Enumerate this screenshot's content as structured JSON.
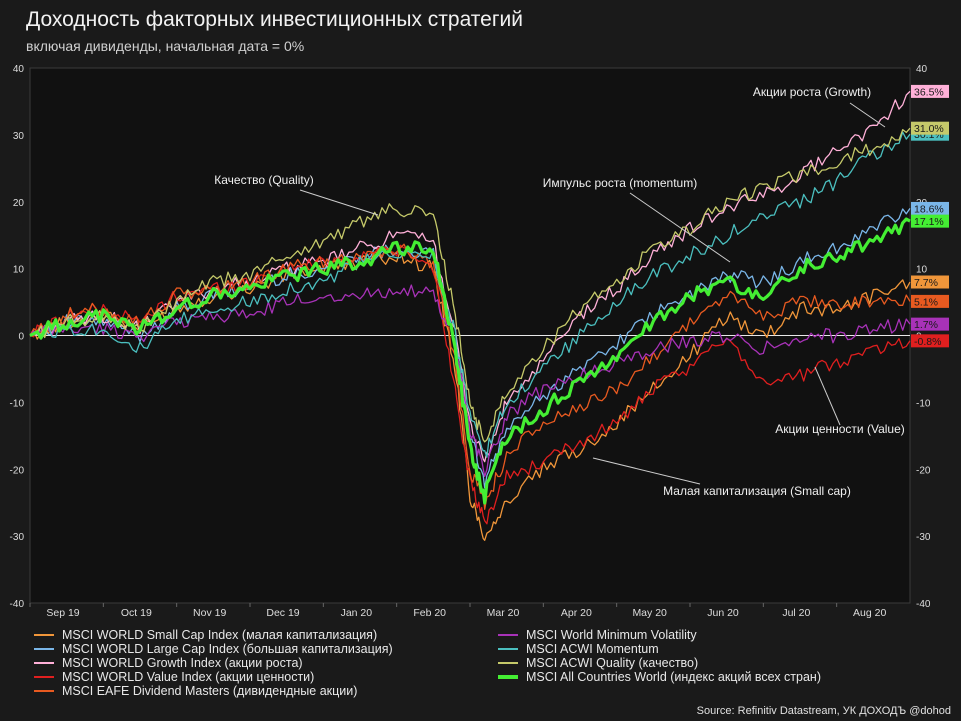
{
  "header": {
    "title": "Доходность факторных инвестиционных стратегий",
    "subtitle": "включая дивиденды, начальная дата = 0%"
  },
  "source": "Source: Refinitiv Datastream, УК ДОХОДЪ @dohod",
  "chart_data": {
    "type": "line",
    "title": "Доходность факторных инвестиционных стратегий",
    "subtitle": "включая дивиденды, начальная дата = 0%",
    "ylim": [
      -40,
      40
    ],
    "y_ticks": [
      -40,
      -30,
      -20,
      -10,
      0,
      10,
      20,
      30,
      40
    ],
    "right_y_ticks": [
      -40,
      -30,
      -20,
      -10,
      0,
      10,
      20,
      30,
      40
    ],
    "x_tick_labels": [
      "Sep 19",
      "Oct 19",
      "Nov 19",
      "Dec 19",
      "Jan 20",
      "Feb 20",
      "Mar 20",
      "Apr 20",
      "May 20",
      "Jun 20",
      "Jul 20",
      "Aug 20"
    ],
    "x": [
      0,
      0.5,
      1,
      1.5,
      2,
      2.5,
      3,
      3.5,
      4,
      4.5,
      5,
      5.5,
      5.8,
      6,
      6.2,
      6.5,
      7,
      7.5,
      8,
      8.5,
      9,
      9.5,
      10,
      10.5,
      11,
      11.5,
      12
    ],
    "grid": false,
    "zero_line": true,
    "series": [
      {
        "name": "MSCI WORLD Small Cap Index (малая капитализация)",
        "color": "#f0963a",
        "width": 1.3,
        "end_label": "7.7%",
        "values": [
          0,
          2,
          3,
          1,
          4,
          6,
          7,
          9,
          10,
          11,
          12,
          10,
          -5,
          -24,
          -30,
          -25,
          -20,
          -17,
          -13,
          -8,
          -3,
          3,
          0,
          4,
          4,
          6,
          8
        ]
      },
      {
        "name": "MSCI WORLD Large Cap Index (большая капитализация)",
        "color": "#7ab6e8",
        "width": 1.3,
        "end_label": "18.6%",
        "values": [
          0,
          2,
          2,
          0,
          4,
          6,
          7,
          9,
          10,
          12,
          13,
          12,
          -2,
          -15,
          -22,
          -14,
          -9,
          -5,
          -1,
          3,
          6,
          9,
          8,
          11,
          13,
          16,
          19
        ]
      },
      {
        "name": "MSCI WORLD Growth Index (акции роста)",
        "color": "#ffb0d8",
        "width": 1.3,
        "end_label": "36.5%",
        "values": [
          0,
          2,
          3,
          1,
          5,
          7,
          8,
          10,
          11,
          13,
          15,
          14,
          0,
          -13,
          -19,
          -10,
          -4,
          3,
          7,
          12,
          16,
          19,
          21,
          24,
          28,
          31,
          36.5
        ]
      },
      {
        "name": "MSCI WORLD Value Index (акции ценности)",
        "color": "#e01f1f",
        "width": 1.3,
        "end_label": "-0.8%",
        "values": [
          0,
          3,
          4,
          2,
          6,
          7,
          8,
          10,
          11,
          12,
          13,
          10,
          -8,
          -22,
          -28,
          -21,
          -19,
          -16,
          -13,
          -8,
          -5,
          0,
          -7,
          -6,
          -4,
          -2,
          -0.8
        ]
      },
      {
        "name": "MSCI EAFE Dividend Masters (дивидендные акции)",
        "color": "#e85a20",
        "width": 1.3,
        "end_label": "5.1%",
        "values": [
          0,
          3,
          4,
          2,
          6,
          7,
          8,
          10,
          11,
          12,
          13,
          11,
          -4,
          -20,
          -25,
          -18,
          -13,
          -11,
          -8,
          -3,
          2,
          6,
          3,
          5,
          5,
          5,
          5.1
        ]
      },
      {
        "name": "MSCI World Minimum Volatility",
        "color": "#a832b8",
        "width": 1.3,
        "end_label": "1.7%",
        "values": [
          0,
          1,
          1,
          0,
          2,
          3,
          3,
          5,
          6,
          6,
          7,
          6,
          -1,
          -14,
          -20,
          -12,
          -8,
          -6,
          -4,
          -2,
          -1,
          0,
          -2,
          0,
          0,
          1,
          1.7
        ]
      },
      {
        "name": "MSCI ACWI Momentum",
        "color": "#4bbfbf",
        "width": 1.3,
        "end_label": "30.1%",
        "values": [
          0,
          1,
          1,
          -2,
          2,
          4,
          5,
          7,
          8,
          11,
          12,
          12,
          0,
          -12,
          -18,
          -10,
          -5,
          0,
          5,
          9,
          12,
          15,
          18,
          20,
          23,
          27,
          30.1
        ]
      },
      {
        "name": "MSCI ACWI Quality (качество)",
        "color": "#c5c96a",
        "width": 1.3,
        "end_label": "31.0%",
        "values": [
          0,
          2,
          3,
          1,
          5,
          8,
          9,
          12,
          14,
          17,
          19,
          18,
          3,
          -10,
          -16,
          -8,
          -2,
          4,
          8,
          13,
          16,
          20,
          22,
          24,
          26,
          28,
          31
        ]
      },
      {
        "name": "MSCI All Countries World (индекс акций всех стран)",
        "color": "#44ee33",
        "width": 3.2,
        "end_label": "17.1%",
        "values": [
          0,
          2,
          3,
          1,
          4,
          6,
          7,
          9,
          10,
          11,
          13,
          13,
          -2,
          -17,
          -24,
          -15,
          -11,
          -7,
          -3,
          2,
          6,
          8,
          6,
          10,
          12,
          14,
          17.1
        ]
      }
    ],
    "annotations": [
      "Акции роста (Growth)",
      "Качество (Quality)",
      "Импульс роста (momentum)",
      "Акции ценности (Value)",
      "Малая капитализация (Small cap)"
    ]
  }
}
